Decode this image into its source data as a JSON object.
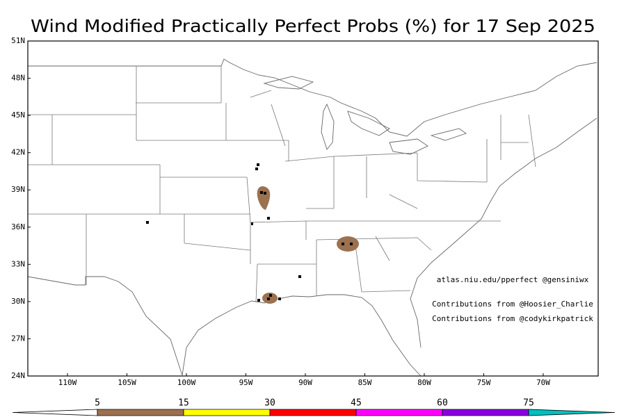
{
  "title": "Wind Modified Practically Perfect Probs (%) for 17 Sep 2025",
  "lat_labels": [
    "51N",
    "48N",
    "45N",
    "42N",
    "39N",
    "36N",
    "33N",
    "30N",
    "27N",
    "24N"
  ],
  "lon_labels": [
    "110W",
    "105W",
    "100W",
    "95W",
    "90W",
    "85W",
    "80W",
    "75W",
    "70W"
  ],
  "annotations": [
    "atlas.niu.edu/pperfect @gensiniwx",
    "Contributions from @Hoosier_Charlie",
    "Contributions from @codykirkpatrick"
  ],
  "colorbar": {
    "labels": [
      5,
      15,
      30,
      45,
      60,
      75
    ],
    "colors": [
      "#ffffff",
      "#9c7150",
      "#ffff00",
      "#ff0000",
      "#ff00ff",
      "#8a00e0",
      "#00c0c0"
    ]
  }
}
